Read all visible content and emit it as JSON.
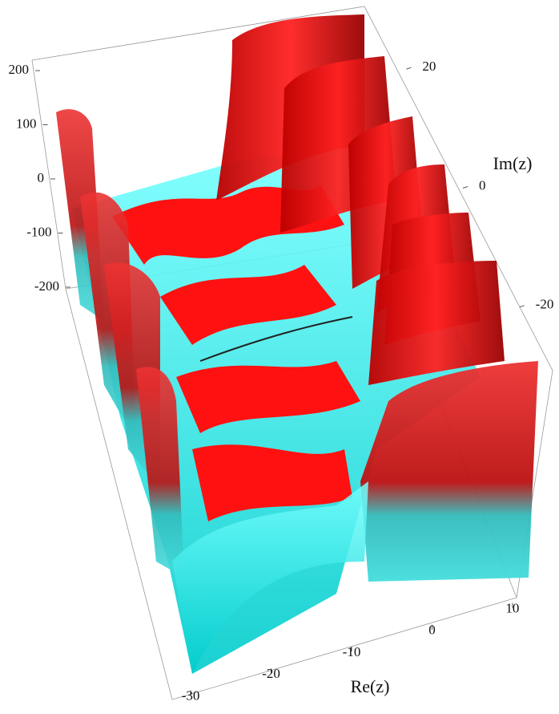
{
  "chart_data": {
    "type": "surface3d",
    "x_label": "Re(z)",
    "y_label": "Im(z)",
    "xlim": [
      -32,
      12
    ],
    "xticks": [
      -30,
      -20,
      -10,
      0,
      10
    ],
    "ylim": [
      -30,
      30
    ],
    "yticks": [
      -20,
      0,
      20
    ],
    "zlim": [
      -200,
      200
    ],
    "zticks": [
      -200,
      -100,
      0,
      100,
      200
    ]
  }
}
